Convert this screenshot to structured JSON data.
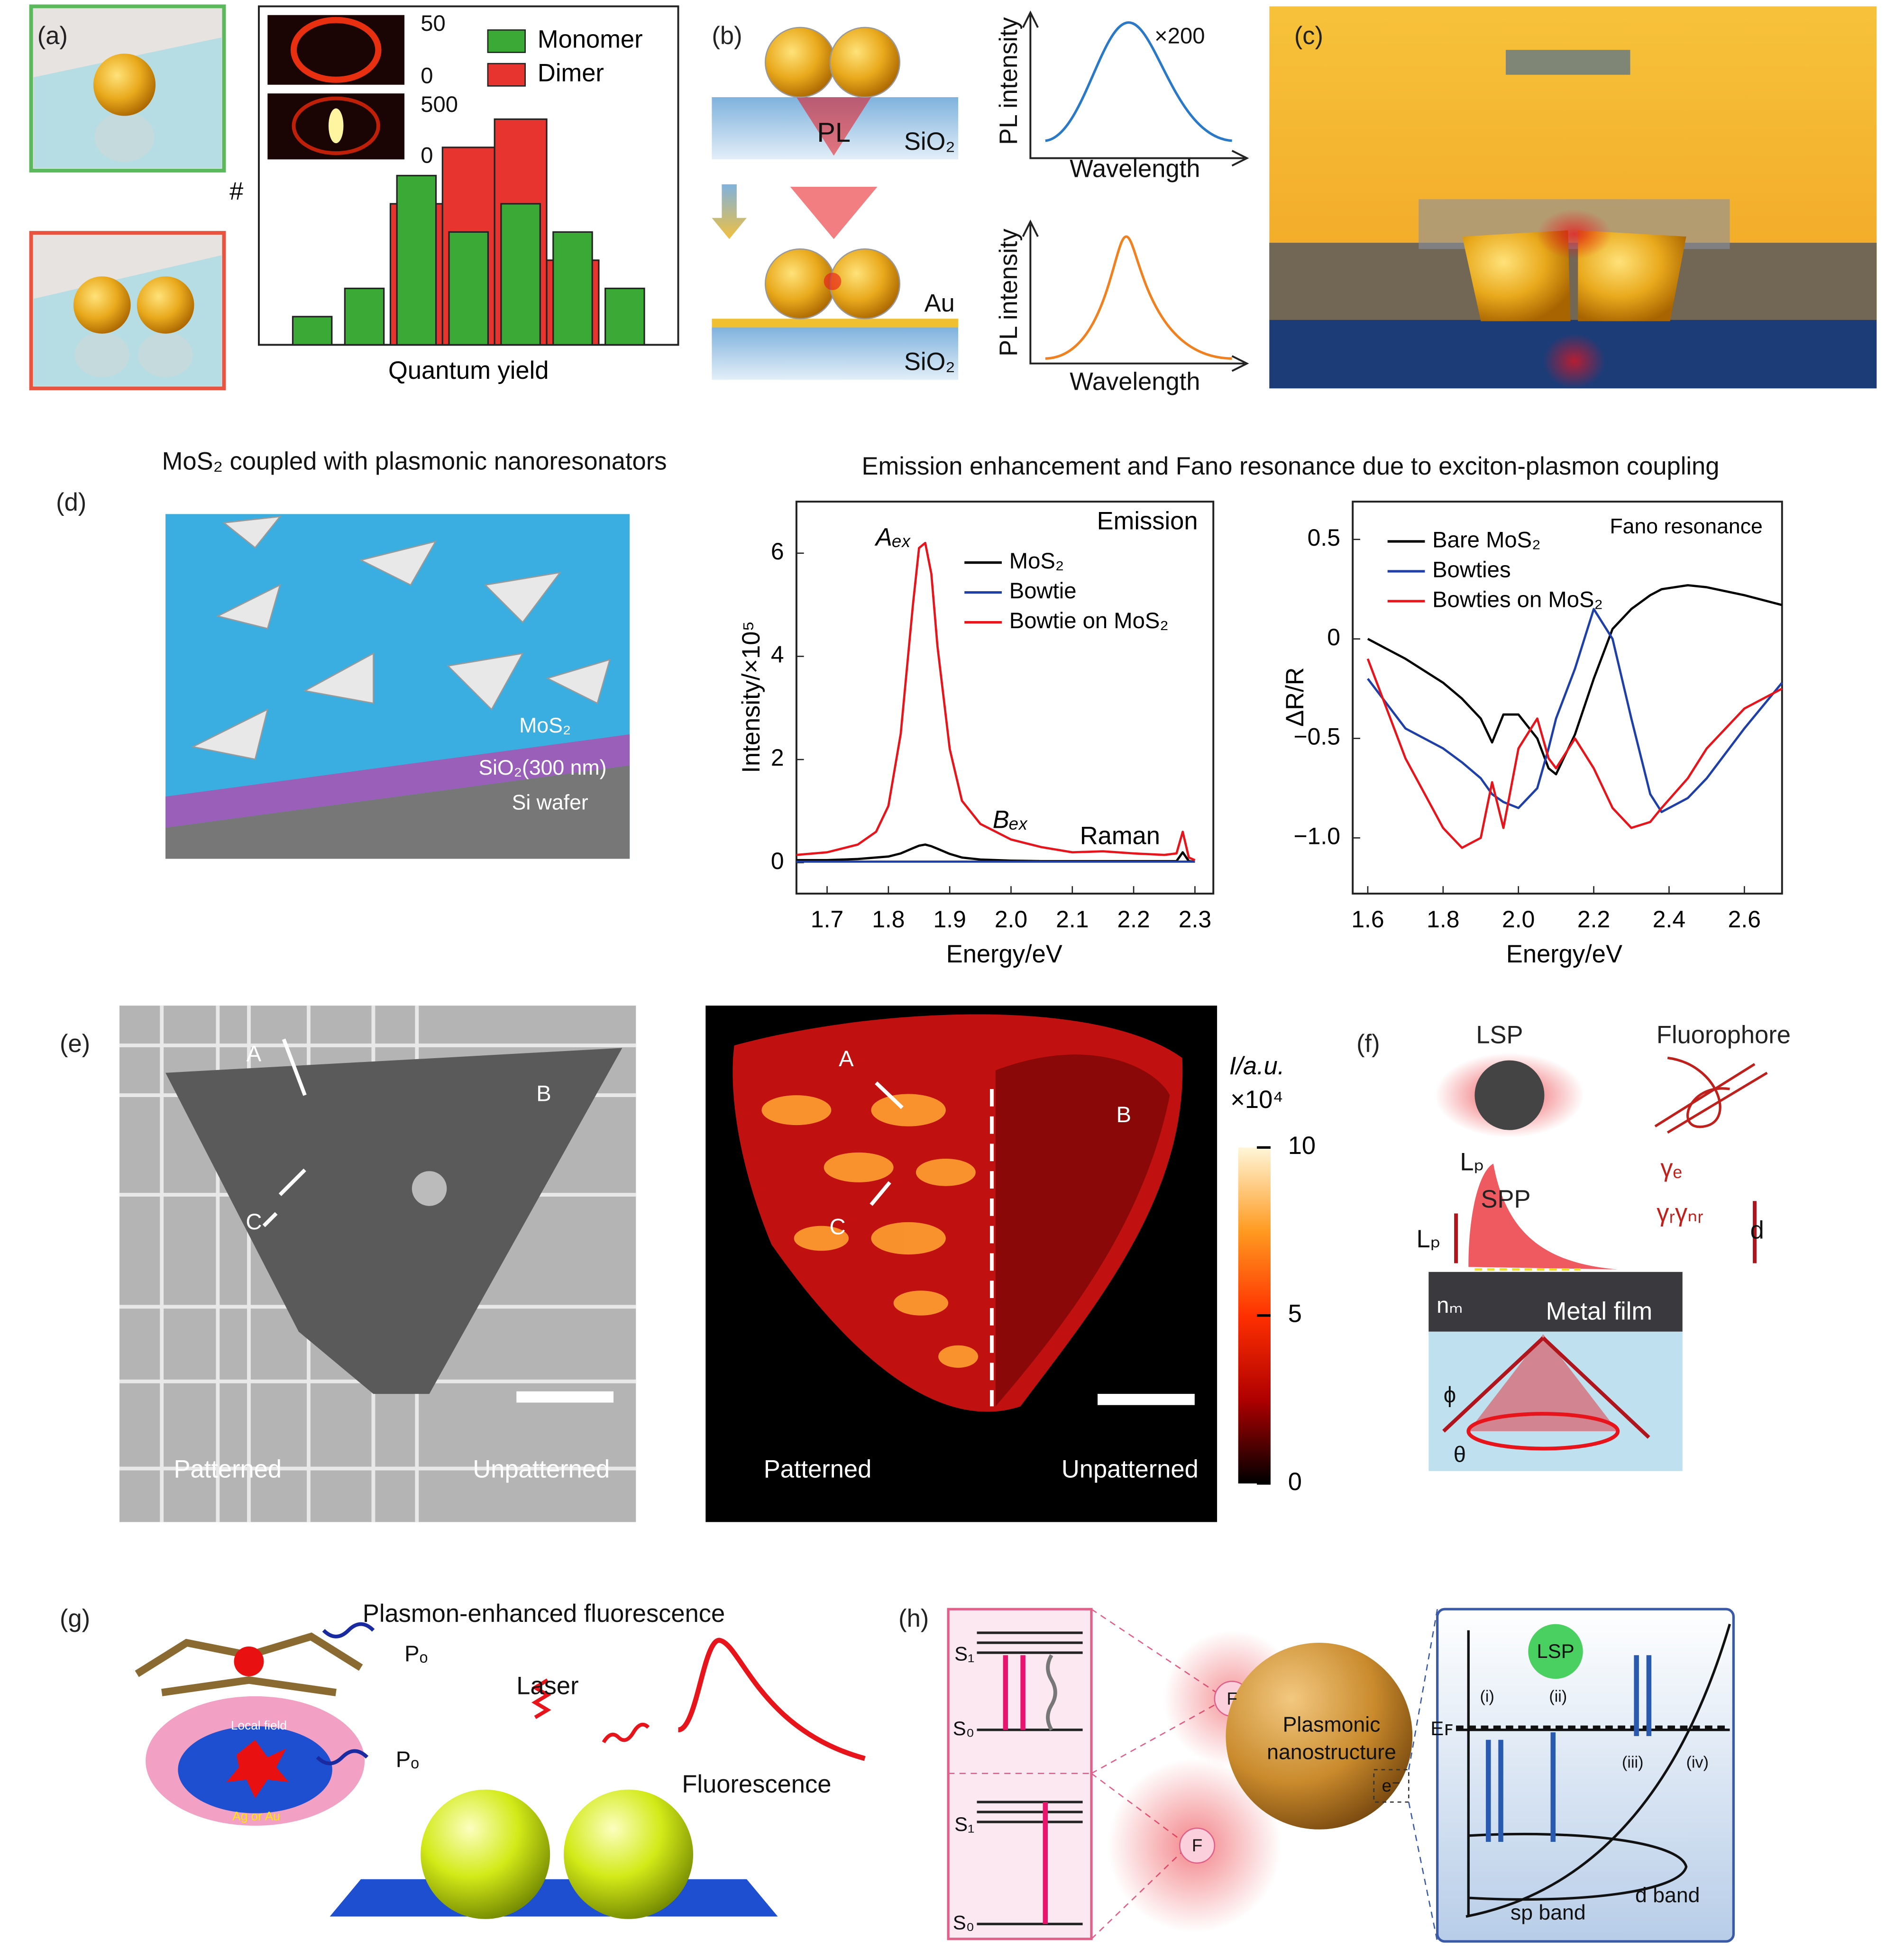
{
  "chart_data": [
    {
      "type": "bar",
      "xlabel": "Quantum yield",
      "ylabel": "#",
      "categories": [
        null,
        null,
        null,
        null,
        null,
        null,
        null
      ],
      "ylim": [
        0,
        12
      ],
      "series": [
        {
          "name": "Monomer",
          "color": "#3aa935",
          "values": [
            1,
            2,
            6,
            4,
            5,
            4,
            2
          ]
        },
        {
          "name": "Dimer",
          "color": "#e8342f",
          "values": [
            0,
            0,
            5,
            7,
            8,
            3,
            0
          ]
        }
      ]
    },
    {
      "type": "line",
      "xlabel": "Energy/eV",
      "ylabel": "Intensity/×10⁵",
      "annotations": [
        "Emission",
        "Aₑₓ",
        "Bₑₓ",
        "Raman"
      ],
      "xlim": [
        1.65,
        2.33
      ],
      "xticks": [
        1.7,
        1.8,
        1.9,
        {
          "value": 2,
          "label": "2.0"
        },
        2.1,
        2.2,
        2.3
      ],
      "ylim": [
        -0.6,
        7.0
      ],
      "yticks": [
        0,
        2,
        4,
        6
      ],
      "x": [
        1.65,
        1.7,
        1.75,
        1.78,
        1.8,
        1.82,
        1.84,
        1.85,
        1.86,
        1.87,
        1.88,
        1.9,
        1.92,
        1.95,
        2.0,
        2.05,
        2.1,
        2.15,
        2.2,
        2.25,
        2.27,
        2.28,
        2.29,
        2.3
      ],
      "series": [
        {
          "name": "MoS₂",
          "color": "#000000",
          "values": [
            0.05,
            0.05,
            0.07,
            0.1,
            0.12,
            0.18,
            0.28,
            0.33,
            0.35,
            0.32,
            0.27,
            0.17,
            0.1,
            0.06,
            0.04,
            0.03,
            0.03,
            0.03,
            0.03,
            0.03,
            0.03,
            0.2,
            0.03,
            0.02
          ]
        },
        {
          "name": "Bowtie",
          "color": "#1f3fa8",
          "values": [
            0.02,
            0.02,
            0.02,
            0.02,
            0.02,
            0.02,
            0.02,
            0.02,
            0.02,
            0.02,
            0.02,
            0.02,
            0.02,
            0.02,
            0.02,
            0.02,
            0.02,
            0.02,
            0.02,
            0.02,
            0.02,
            0.02,
            0.02,
            0.02
          ]
        },
        {
          "name": "Bowtie on MoS₂",
          "color": "#e8141c",
          "values": [
            0.15,
            0.2,
            0.35,
            0.6,
            1.1,
            2.5,
            5.0,
            6.1,
            6.2,
            5.6,
            4.2,
            2.2,
            1.2,
            0.75,
            0.45,
            0.3,
            0.2,
            0.22,
            0.18,
            0.15,
            0.18,
            0.6,
            0.1,
            0.05
          ]
        }
      ]
    },
    {
      "type": "line",
      "xlabel": "Energy/eV",
      "ylabel": "ΔR/R",
      "annotations": [
        "Fano resonance"
      ],
      "xlim": [
        1.56,
        2.7
      ],
      "xticks": [
        1.6,
        1.8,
        {
          "value": 2,
          "label": "2.0"
        },
        2.2,
        2.4,
        2.6
      ],
      "ylim": [
        -1.28,
        0.69
      ],
      "yticks": [
        0.5,
        0,
        {
          "value": -0.5,
          "label": "−0.5"
        },
        {
          "value": -1,
          "label": "−1.0"
        }
      ],
      "x": [
        1.6,
        1.7,
        1.8,
        1.85,
        1.9,
        1.93,
        1.96,
        2.0,
        2.05,
        2.08,
        2.1,
        2.15,
        2.2,
        2.25,
        2.3,
        2.35,
        2.38,
        2.45,
        2.5,
        2.6,
        2.7
      ],
      "series": [
        {
          "name": "Bare MoS₂",
          "color": "#000000",
          "values": [
            0,
            -0.1,
            -0.22,
            -0.3,
            -0.4,
            -0.52,
            -0.38,
            -0.38,
            -0.5,
            -0.65,
            -0.68,
            -0.48,
            -0.2,
            0.05,
            0.15,
            0.22,
            0.25,
            0.27,
            0.26,
            0.22,
            0.17
          ]
        },
        {
          "name": "Bowties",
          "color": "#1f3fa8",
          "values": [
            -0.2,
            -0.45,
            -0.55,
            -0.62,
            -0.7,
            -0.78,
            -0.82,
            -0.85,
            -0.75,
            -0.55,
            -0.4,
            -0.15,
            0.15,
            0.0,
            -0.4,
            -0.78,
            -0.87,
            -0.8,
            -0.7,
            -0.45,
            -0.22
          ]
        },
        {
          "name": "Bowties on MoS₂",
          "color": "#e8141c",
          "values": [
            -0.1,
            -0.6,
            -0.95,
            -1.05,
            -1.0,
            -0.72,
            -0.95,
            -0.55,
            -0.4,
            -0.6,
            -0.65,
            -0.5,
            -0.65,
            -0.85,
            -0.95,
            -0.92,
            -0.85,
            -0.7,
            -0.55,
            -0.35,
            -0.25
          ]
        }
      ]
    }
  ],
  "figure": {
    "labels": [
      "(a)",
      "(b)",
      "(c)",
      "(d)",
      "(e)",
      "(f)",
      "(g)",
      "(h)",
      "50",
      "0",
      "500",
      "0",
      "PL",
      "SiO₂",
      "Au",
      "SiO₂",
      "PL intensity",
      "Wavelength",
      "×200",
      "PL intensity",
      "Wavelength",
      "MoS₂ coupled with plasmonic nanoresonators",
      "Emission enhancement and Fano resonance due to exciton-plasmon coupling",
      "MoS₂",
      "SiO₂(300 nm)",
      "Si wafer",
      "A",
      "B",
      "C",
      "Patterned",
      "Unpatterned",
      "A",
      "B",
      "C",
      "Patterned",
      "Unpatterned",
      "LSP",
      "Fluorophore",
      "Lₚ",
      "SPP",
      "Lₚ",
      "γₑ",
      "γᵣγₙᵣ",
      "d",
      "nₘ",
      "Metal film",
      "ϕ",
      "θ",
      "Plasmon-enhanced fluorescence",
      "Pₒ",
      "Pₒ",
      "Laser",
      "Fluorescence",
      "Local field",
      "Ag or Au",
      "S₁",
      "S₀",
      "S₁",
      "S₀",
      "F",
      "F",
      "Plasmonic",
      "nanostructure",
      "e⁻",
      "LSP",
      "Eꜰ",
      "(i)",
      "(ii)",
      "(iii)",
      "(iv)",
      "sp band",
      "d band"
    ],
    "colorbar": {
      "label": "I/a.u.",
      "multiplier": "×10⁴",
      "ticks": [
        10,
        5,
        0
      ]
    }
  }
}
